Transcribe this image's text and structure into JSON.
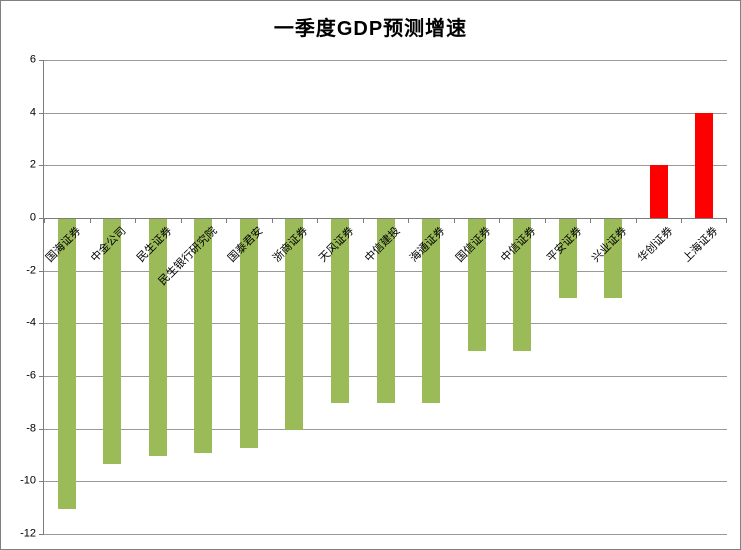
{
  "title": "一季度GDP预测增速",
  "chart_data": {
    "type": "bar",
    "title": "一季度GDP预测增速",
    "categories": [
      "国海证券",
      "中金公司",
      "民生证券",
      "民生银行研究院",
      "国泰君安",
      "浙商证券",
      "天风证券",
      "中信建投",
      "海通证券",
      "国信证券",
      "中信证券",
      "平安证券",
      "兴业证券",
      "华创证券",
      "上海证券"
    ],
    "values": [
      -11,
      -9.3,
      -9,
      -8.9,
      -8.7,
      -8,
      -7,
      -7,
      -7,
      -5,
      -5,
      -3,
      -3,
      2,
      4
    ],
    "xlabel": "",
    "ylabel": "",
    "ylim": [
      -12,
      6
    ],
    "yticks": [
      6,
      4,
      2,
      0,
      -2,
      -4,
      -6,
      -8,
      -10,
      -12
    ],
    "grid": true,
    "legend": "none",
    "colors": {
      "negative_bar": "#9BBB59",
      "positive_bar": "#FF0000",
      "gridline": "#9a9a9a",
      "axis": "#7c7c7c",
      "text": "#000000",
      "background": "#ffffff",
      "border": "#808080"
    }
  }
}
